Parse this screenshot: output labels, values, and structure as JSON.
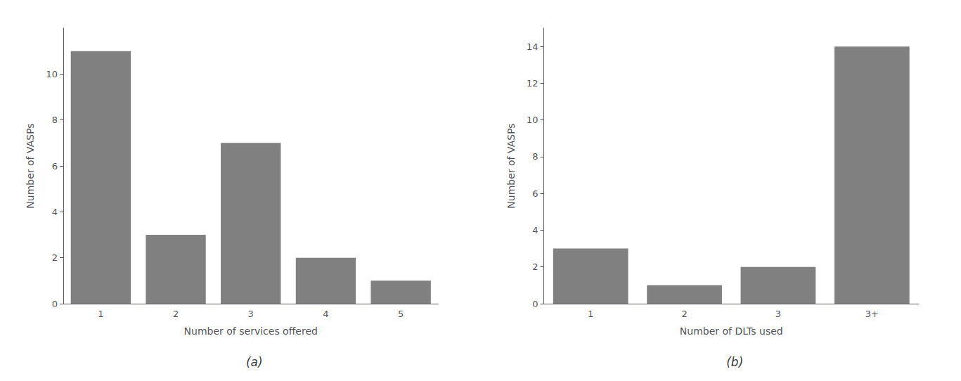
{
  "chart_data": [
    {
      "type": "bar",
      "title": "(a)",
      "categories": [
        "1",
        "2",
        "3",
        "4",
        "5"
      ],
      "values": [
        11,
        3,
        7,
        2,
        1
      ],
      "color": "#808080",
      "xlabel": "Number of services offered",
      "ylabel": "Number of VASPs",
      "ylim": [
        0,
        12
      ],
      "yticks": [
        0,
        2,
        4,
        6,
        8,
        10
      ],
      "grid": false
    },
    {
      "type": "bar",
      "title": "(b)",
      "categories": [
        "1",
        "2",
        "3",
        "3+"
      ],
      "values": [
        3,
        1,
        2,
        14
      ],
      "color": "#808080",
      "xlabel": "Number of DLTs used",
      "ylabel": "Number of VASPs",
      "ylim": [
        0,
        15
      ],
      "yticks": [
        0,
        2,
        4,
        6,
        8,
        10,
        12,
        14
      ],
      "grid": false
    }
  ]
}
